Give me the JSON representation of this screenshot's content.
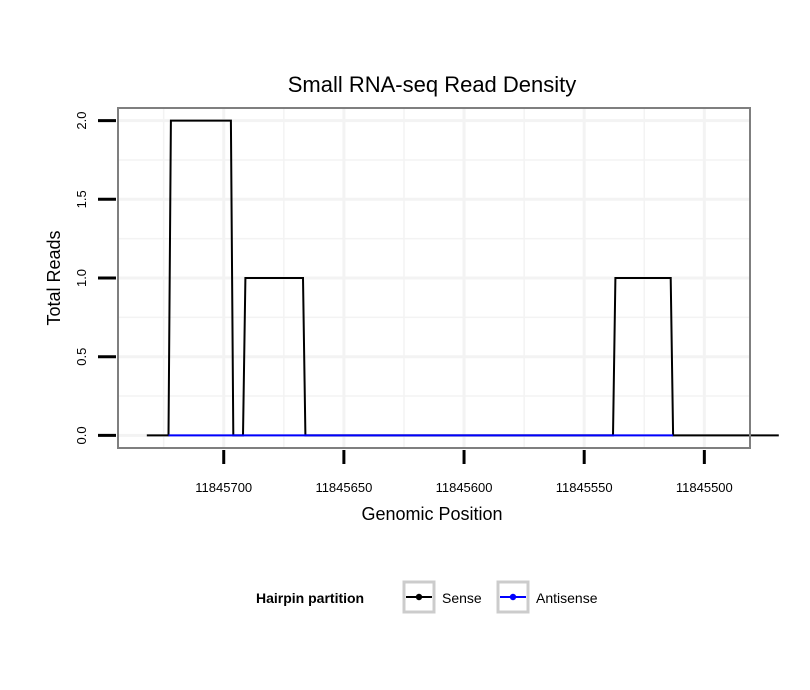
{
  "chart_data": {
    "type": "line",
    "title": "Small RNA-seq Read Density",
    "xlabel": "Genomic Position",
    "ylabel": "Total Reads",
    "x_reversed": true,
    "xlim": [
      11845744,
      11845481
    ],
    "ylim": [
      -0.08,
      2.08
    ],
    "x_ticks": [
      11845700,
      11845650,
      11845600,
      11845550,
      11845500
    ],
    "x_tick_labels": [
      "11845700",
      "11845650",
      "11845600",
      "11845550",
      "11845500"
    ],
    "y_ticks": [
      0,
      0.5,
      1,
      1.5,
      2
    ],
    "y_tick_labels": [
      "0.0",
      "0.5",
      "1.0",
      "1.5",
      "2.0"
    ],
    "grid": true,
    "legend": {
      "title": "Hairpin partition",
      "placement": "bottom",
      "entries": [
        {
          "name": "Sense",
          "color": "#000000"
        },
        {
          "name": "Antisense",
          "color": "#0000ff"
        }
      ]
    },
    "series": [
      {
        "name": "Sense",
        "color": "#000000",
        "x": [
          11845732,
          11845723,
          11845722,
          11845697,
          11845696,
          11845692,
          11845691,
          11845685,
          11845684,
          11845667,
          11845666,
          11845538,
          11845537,
          11845514,
          11845513,
          11845469
        ],
        "y": [
          0,
          0,
          2,
          2,
          0,
          0,
          1,
          1,
          1,
          1,
          0,
          0,
          1,
          1,
          0,
          0
        ]
      },
      {
        "name": "Antisense",
        "color": "#0000ff",
        "x": [
          11845723,
          11845666,
          11845537,
          11845513
        ],
        "y": [
          0,
          0,
          0,
          0
        ]
      }
    ]
  }
}
